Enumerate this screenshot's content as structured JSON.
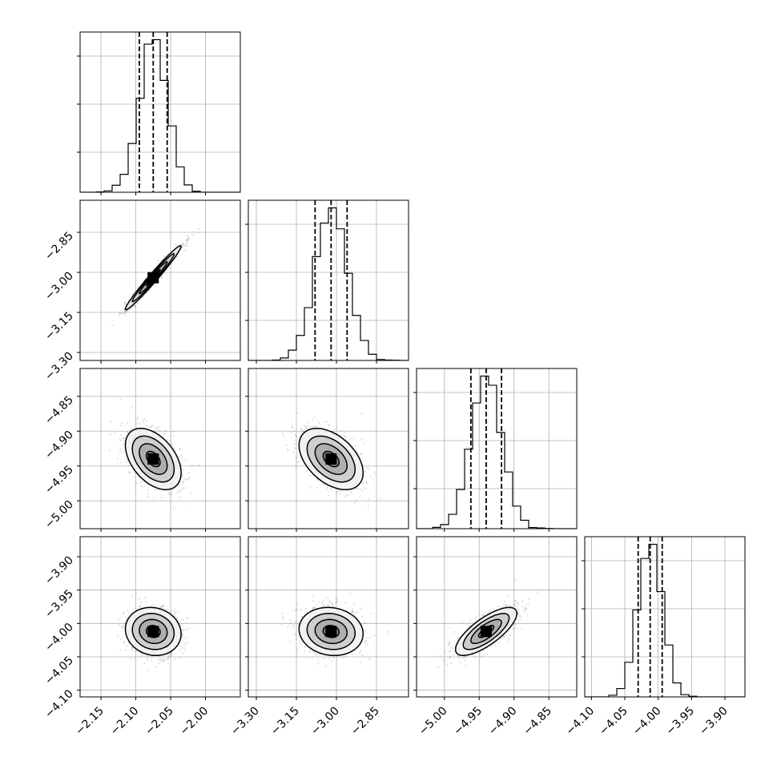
{
  "chart_data": {
    "type": "corner",
    "grid": true,
    "parameters": [
      {
        "mean": -2.075,
        "sigma": 0.02,
        "quantiles": [
          -2.095,
          -2.075,
          -2.055
        ],
        "range": [
          -2.18,
          -1.95
        ],
        "ticks": [
          -2.15,
          -2.1,
          -2.05,
          -2.0
        ],
        "tick_labels": [
          "−2.15",
          "−2.10",
          "−2.05",
          "−2.00"
        ]
      },
      {
        "mean": -3.02,
        "sigma": 0.06,
        "quantiles": [
          -3.08,
          -3.02,
          -2.96
        ],
        "range": [
          -3.33,
          -2.73
        ],
        "ticks": [
          -3.3,
          -3.15,
          -3.0,
          -2.85
        ],
        "tick_labels": [
          "−3.30",
          "−3.15",
          "−3.00",
          "−2.85"
        ]
      },
      {
        "mean": -4.94,
        "sigma": 0.022,
        "quantiles": [
          -4.962,
          -4.94,
          -4.918
        ],
        "range": [
          -5.04,
          -4.81
        ],
        "ticks": [
          -5.0,
          -4.95,
          -4.9,
          -4.85
        ],
        "tick_labels": [
          "−5.00",
          "−4.95",
          "−4.90",
          "−4.85"
        ]
      },
      {
        "mean": -4.012,
        "sigma": 0.018,
        "quantiles": [
          -4.03,
          -4.012,
          -3.994
        ],
        "range": [
          -4.11,
          -3.87
        ],
        "ticks": [
          -4.1,
          -4.05,
          -4.0,
          -3.95,
          -3.9
        ],
        "tick_labels": [
          "−4.10",
          "−4.05",
          "−4.00",
          "−3.95",
          "−3.90"
        ]
      }
    ],
    "correlations": [
      {
        "i": 1,
        "j": 0,
        "rho": 0.98
      },
      {
        "i": 2,
        "j": 0,
        "rho": -0.45
      },
      {
        "i": 2,
        "j": 1,
        "rho": -0.45
      },
      {
        "i": 3,
        "j": 0,
        "rho": -0.1
      },
      {
        "i": 3,
        "j": 1,
        "rho": -0.1
      },
      {
        "i": 3,
        "j": 2,
        "rho": 0.75
      }
    ],
    "contour_levels_sigma": [
      0.5,
      1.0,
      1.5,
      2.0
    ]
  }
}
